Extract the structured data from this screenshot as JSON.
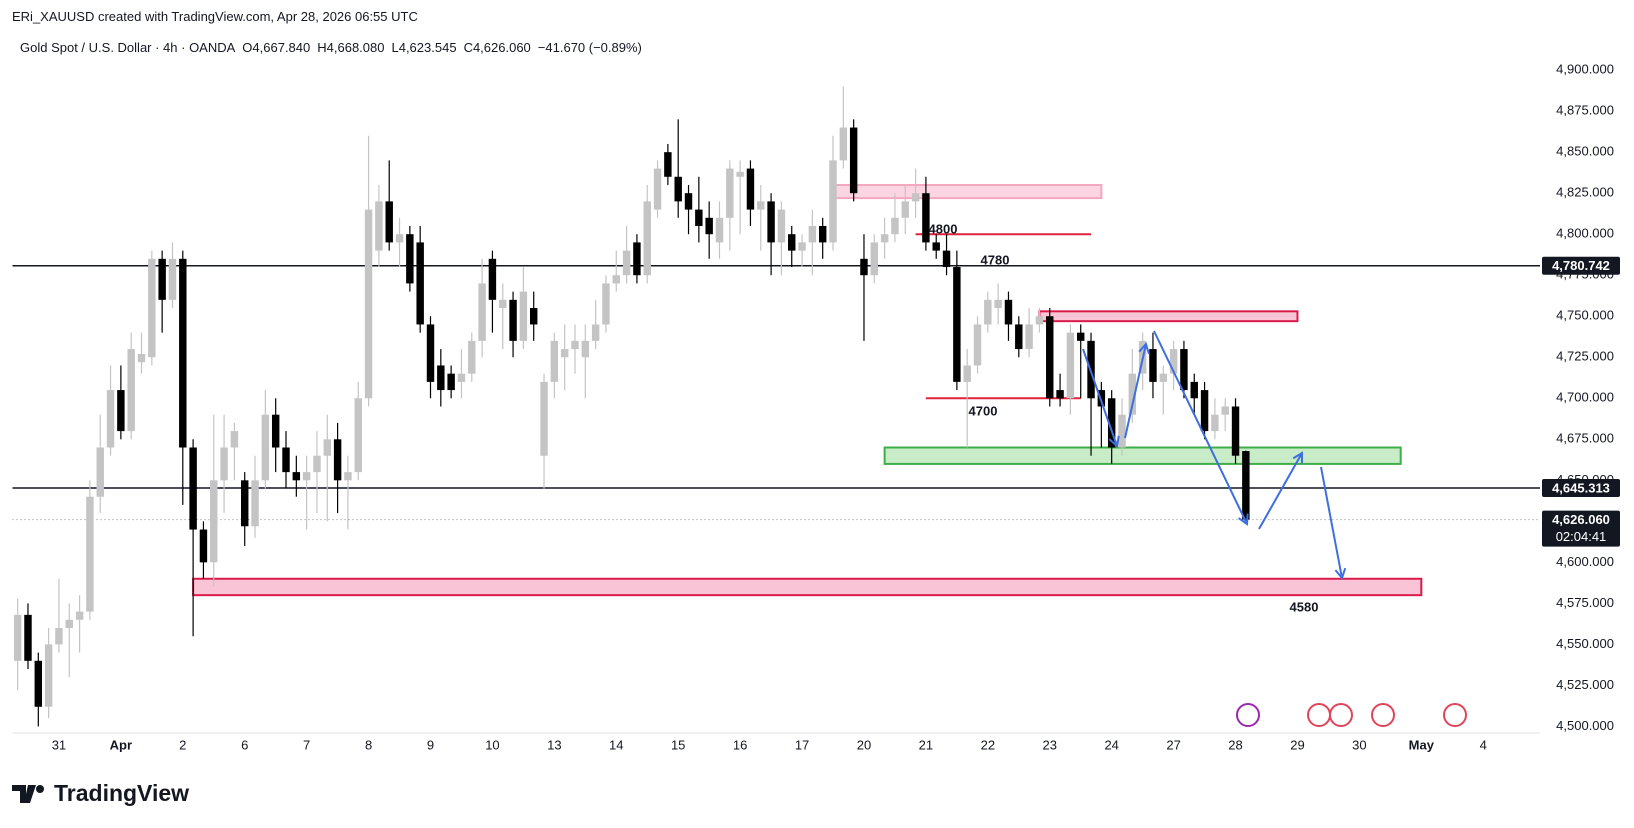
{
  "attribution": "ERi_XAUUSD created with TradingView.com, Apr 28, 2026 06:55 UTC",
  "brand": "TradingView",
  "chart_data": {
    "type": "candlestick",
    "title": "Gold Spot / U.S. Dollar · 4h · OANDA",
    "ohlc_labels": [
      "O4,667.840",
      "H4,668.080",
      "L4,623.545",
      "C4,626.060",
      "−41.670 (−0.89%)"
    ],
    "up_color": "#c4c4c4",
    "down_color": "#000000",
    "open": [
      4540,
      4568,
      4540,
      4512,
      4550,
      4560,
      4565,
      4570,
      4640,
      4670,
      4705,
      4680,
      4722,
      4725,
      4785,
      4760,
      4785,
      4670,
      4620,
      4600,
      4650,
      4670,
      4650,
      4622,
      4650,
      4690,
      4670,
      4655,
      4650,
      4655,
      4665,
      4675,
      4650,
      4655,
      4700,
      4790,
      4820,
      4795,
      4800,
      4795,
      4745,
      4720,
      4715,
      4710,
      4715,
      4735,
      4785,
      4755,
      4760,
      4735,
      4755,
      4665,
      4710,
      4725,
      4730,
      4725,
      4735,
      4745,
      4770,
      4775,
      4795,
      4775,
      4815,
      4850,
      4835,
      4825,
      4815,
      4810,
      4795,
      4810,
      4835,
      4840,
      4815,
      4820,
      4795,
      4800,
      4790,
      4795,
      4805,
      4795,
      4845,
      4865,
      4785,
      4775,
      4795,
      4800,
      4810,
      4820,
      4825,
      4795,
      4790,
      4780,
      4710,
      4720,
      4745,
      4755,
      4760,
      4745,
      4730,
      4745,
      4750,
      4705,
      4700,
      4740,
      4735,
      4705,
      4700,
      4670,
      4690,
      4715,
      4730,
      4710,
      4715,
      4730,
      4710,
      4705,
      4680,
      4690,
      4695,
      4667.84
    ],
    "high": [
      4578,
      4575,
      4545,
      4560,
      4590,
      4575,
      4580,
      4650,
      4690,
      4720,
      4720,
      4740,
      4740,
      4790,
      4790,
      4795,
      4790,
      4675,
      4625,
      4690,
      4690,
      4685,
      4655,
      4665,
      4705,
      4700,
      4680,
      4665,
      4665,
      4680,
      4690,
      4685,
      4665,
      4710,
      4860,
      4830,
      4845,
      4810,
      4805,
      4805,
      4750,
      4730,
      4720,
      4730,
      4740,
      4785,
      4790,
      4770,
      4765,
      4780,
      4765,
      4715,
      4740,
      4745,
      4745,
      4745,
      4760,
      4775,
      4790,
      4805,
      4800,
      4830,
      4845,
      4855,
      4870,
      4830,
      4835,
      4820,
      4820,
      4845,
      4845,
      4845,
      4830,
      4825,
      4820,
      4805,
      4800,
      4815,
      4810,
      4860,
      4890,
      4870,
      4800,
      4800,
      4810,
      4825,
      4830,
      4840,
      4835,
      4800,
      4800,
      4790,
      4730,
      4750,
      4765,
      4770,
      4765,
      4750,
      4755,
      4755,
      4755,
      4715,
      4745,
      4745,
      4740,
      4710,
      4705,
      4700,
      4730,
      4740,
      4740,
      4720,
      4735,
      4735,
      4715,
      4710,
      4700,
      4700,
      4700,
      4668.08
    ],
    "low": [
      4522,
      4535,
      4500,
      4505,
      4545,
      4530,
      4545,
      4565,
      4630,
      4665,
      4675,
      4675,
      4715,
      4720,
      4740,
      4755,
      4635,
      4555,
      4590,
      4585,
      4630,
      4650,
      4610,
      4615,
      4645,
      4655,
      4645,
      4640,
      4620,
      4630,
      4625,
      4630,
      4620,
      4650,
      4695,
      4780,
      4790,
      4780,
      4765,
      4740,
      4700,
      4695,
      4700,
      4700,
      4710,
      4725,
      4740,
      4730,
      4725,
      4730,
      4735,
      4645,
      4700,
      4705,
      4715,
      4700,
      4730,
      4740,
      4765,
      4770,
      4770,
      4770,
      4810,
      4830,
      4810,
      4800,
      4795,
      4785,
      4785,
      4790,
      4800,
      4805,
      4790,
      4775,
      4775,
      4780,
      4780,
      4775,
      4785,
      4790,
      4840,
      4820,
      4735,
      4770,
      4785,
      4795,
      4800,
      4810,
      4790,
      4785,
      4775,
      4705,
      4670,
      4715,
      4740,
      4745,
      4735,
      4725,
      4725,
      4740,
      4695,
      4695,
      4690,
      4700,
      4665,
      4670,
      4660,
      4665,
      4685,
      4705,
      4700,
      4690,
      4705,
      4700,
      4690,
      4675,
      4675,
      4680,
      4660,
      4623.545
    ],
    "close": [
      4568,
      4540,
      4512,
      4550,
      4560,
      4565,
      4570,
      4640,
      4670,
      4705,
      4680,
      4730,
      4727,
      4785,
      4760,
      4785,
      4670,
      4620,
      4600,
      4650,
      4670,
      4680,
      4622,
      4650,
      4690,
      4670,
      4655,
      4650,
      4655,
      4665,
      4675,
      4650,
      4655,
      4700,
      4815,
      4820,
      4795,
      4800,
      4770,
      4745,
      4710,
      4705,
      4705,
      4715,
      4735,
      4770,
      4760,
      4760,
      4735,
      4765,
      4745,
      4710,
      4735,
      4730,
      4735,
      4735,
      4745,
      4770,
      4775,
      4790,
      4775,
      4820,
      4840,
      4835,
      4820,
      4815,
      4805,
      4800,
      4810,
      4840,
      4838,
      4815,
      4820,
      4795,
      4815,
      4790,
      4795,
      4805,
      4795,
      4845,
      4865,
      4825,
      4775,
      4795,
      4800,
      4810,
      4820,
      4825,
      4795,
      4790,
      4780,
      4710,
      4720,
      4745,
      4760,
      4760,
      4745,
      4730,
      4745,
      4750,
      4700,
      4700,
      4740,
      4735,
      4700,
      4695,
      4670,
      4690,
      4715,
      4735,
      4710,
      4715,
      4730,
      4705,
      4700,
      4680,
      4690,
      4695,
      4665,
      4626.06
    ],
    "xlim": [
      -0.5,
      147.5
    ],
    "xticks": [
      {
        "value": 4,
        "label": "31"
      },
      {
        "value": 10,
        "label": "Apr"
      },
      {
        "value": 16,
        "label": "2"
      },
      {
        "value": 22,
        "label": "6"
      },
      {
        "value": 28,
        "label": "7"
      },
      {
        "value": 34,
        "label": "8"
      },
      {
        "value": 40,
        "label": "9"
      },
      {
        "value": 46,
        "label": "10"
      },
      {
        "value": 52,
        "label": "13"
      },
      {
        "value": 58,
        "label": "14"
      },
      {
        "value": 64,
        "label": "15"
      },
      {
        "value": 70,
        "label": "16"
      },
      {
        "value": 76,
        "label": "17"
      },
      {
        "value": 82,
        "label": "20"
      },
      {
        "value": 88,
        "label": "21"
      },
      {
        "value": 94,
        "label": "22"
      },
      {
        "value": 100,
        "label": "23"
      },
      {
        "value": 106,
        "label": "24"
      },
      {
        "value": 112,
        "label": "27"
      },
      {
        "value": 118,
        "label": "28"
      },
      {
        "value": 124,
        "label": "29"
      },
      {
        "value": 130,
        "label": "30"
      },
      {
        "value": 136,
        "label": "May"
      },
      {
        "value": 142,
        "label": "4"
      }
    ],
    "ylim": [
      4496,
      4908
    ],
    "yticks": [
      {
        "value": 4500,
        "label": "4,500.000"
      },
      {
        "value": 4525,
        "label": "4,525.000"
      },
      {
        "value": 4550,
        "label": "4,550.000"
      },
      {
        "value": 4575,
        "label": "4,575.000"
      },
      {
        "value": 4600,
        "label": "4,600.000"
      },
      {
        "value": 4625,
        "label": "4,625.000"
      },
      {
        "value": 4650,
        "label": "4,650.000"
      },
      {
        "value": 4675,
        "label": "4,675.000"
      },
      {
        "value": 4700,
        "label": "4,700.000"
      },
      {
        "value": 4725,
        "label": "4,725.000"
      },
      {
        "value": 4750,
        "label": "4,750.000"
      },
      {
        "value": 4775,
        "label": "4,775.000"
      },
      {
        "value": 4800,
        "label": "4,800.000"
      },
      {
        "value": 4825,
        "label": "4,825.000"
      },
      {
        "value": 4850,
        "label": "4,850.000"
      },
      {
        "value": 4875,
        "label": "4,875.000"
      },
      {
        "value": 4900,
        "label": "4,900.000"
      }
    ],
    "zones": [
      {
        "from": 79,
        "to": 105,
        "low": 4822,
        "high": 4830,
        "fill": "#fbd5e2",
        "stroke": "#f4a7bf"
      },
      {
        "from": 99,
        "to": 124,
        "low": 4747,
        "high": 4753,
        "fill": "#f8c4d6",
        "stroke": "#d81b4a"
      },
      {
        "from": 84,
        "to": 134,
        "low": 4660,
        "high": 4670,
        "fill": "#c8ecc8",
        "stroke": "#3fae49"
      },
      {
        "from": 17,
        "to": 136,
        "low": 4580,
        "high": 4590,
        "fill": "#f8c4d6",
        "stroke": "#d81b4a"
      }
    ],
    "segments": [
      {
        "from": 87,
        "to": 104,
        "value": 4800,
        "color": "#e0223c"
      },
      {
        "from": 88,
        "to": 103,
        "value": 4700,
        "color": "#e0223c"
      }
    ],
    "annotations": [
      "4800",
      "4780",
      "4700",
      "4580"
    ],
    "levels": [
      {
        "value": 4780.742,
        "label": "4,780.742"
      },
      {
        "value": 4645.313,
        "label": "4,645.313"
      }
    ],
    "last_price": {
      "value": 4626.06,
      "label": "4,626.060"
    },
    "countdown": "02:04:41"
  }
}
